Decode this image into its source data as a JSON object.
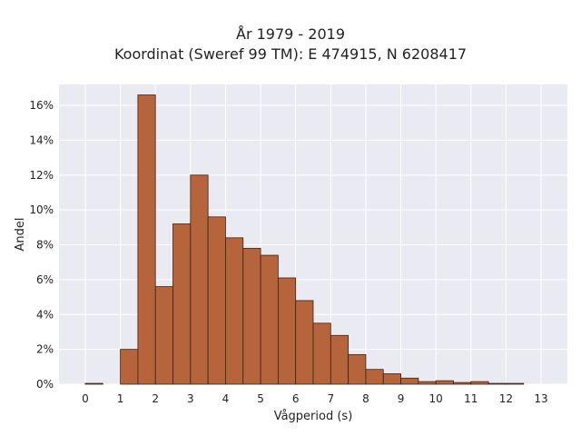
{
  "chart_data": {
    "type": "bar",
    "title_line1": "År 1979 - 2019",
    "title_line2": "Koordinat (Sweref 99 TM): E 474915, N 6208417",
    "xlabel": "Vågperiod (s)",
    "ylabel": "Andel",
    "x_ticks": [
      "0",
      "1",
      "2",
      "3",
      "4",
      "5",
      "6",
      "7",
      "8",
      "9",
      "10",
      "11",
      "12",
      "13"
    ],
    "y_ticks": [
      "0%",
      "2%",
      "4%",
      "6%",
      "8%",
      "10%",
      "12%",
      "14%",
      "16%"
    ],
    "xlim": [
      -0.75,
      13.75
    ],
    "ylim": [
      0,
      17.2
    ],
    "bin_width": 0.5,
    "bins": [
      {
        "x0": 0.0,
        "value": 0.05
      },
      {
        "x0": 1.0,
        "value": 2.0
      },
      {
        "x0": 1.5,
        "value": 16.6
      },
      {
        "x0": 2.0,
        "value": 5.6
      },
      {
        "x0": 2.5,
        "value": 9.2
      },
      {
        "x0": 3.0,
        "value": 12.0
      },
      {
        "x0": 3.5,
        "value": 9.6
      },
      {
        "x0": 4.0,
        "value": 8.4
      },
      {
        "x0": 4.5,
        "value": 7.8
      },
      {
        "x0": 5.0,
        "value": 7.4
      },
      {
        "x0": 5.5,
        "value": 6.1
      },
      {
        "x0": 6.0,
        "value": 4.8
      },
      {
        "x0": 6.5,
        "value": 3.5
      },
      {
        "x0": 7.0,
        "value": 2.8
      },
      {
        "x0": 7.5,
        "value": 1.7
      },
      {
        "x0": 8.0,
        "value": 0.85
      },
      {
        "x0": 8.5,
        "value": 0.6
      },
      {
        "x0": 9.0,
        "value": 0.35
      },
      {
        "x0": 9.5,
        "value": 0.15
      },
      {
        "x0": 10.0,
        "value": 0.2
      },
      {
        "x0": 10.5,
        "value": 0.1
      },
      {
        "x0": 11.0,
        "value": 0.15
      },
      {
        "x0": 11.5,
        "value": 0.05
      },
      {
        "x0": 12.0,
        "value": 0.05
      }
    ],
    "grid": true,
    "colors": {
      "bar_fill": "#b5643b",
      "bar_edge": "#3a2418",
      "plot_bg": "#eaeaf2",
      "grid": "#ffffff",
      "text": "#222222"
    }
  }
}
